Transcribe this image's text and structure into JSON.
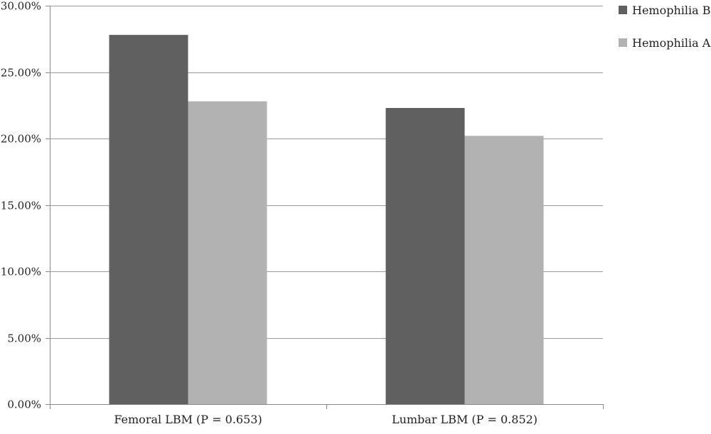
{
  "chart_data": {
    "type": "bar",
    "title": "",
    "xlabel": "",
    "ylabel": "",
    "categories": [
      "Femoral LBM (P = 0.653)",
      "Lumbar LBM (P = 0.852)"
    ],
    "series": [
      {
        "name": "Hemophilia B",
        "color": "#606060",
        "values": [
          27.8,
          22.3
        ]
      },
      {
        "name": "Hemophilia A",
        "color": "#b2b2b2",
        "values": [
          22.8,
          20.2
        ]
      }
    ],
    "ylim": [
      0,
      30
    ],
    "yticks": [
      0,
      5,
      10,
      15,
      20,
      25,
      30
    ],
    "ytick_labels": [
      "0.00%",
      "5.00%",
      "10.00%",
      "15.00%",
      "20.00%",
      "25.00%",
      "30.00%"
    ],
    "grid": true,
    "legend_position": "top-right"
  }
}
